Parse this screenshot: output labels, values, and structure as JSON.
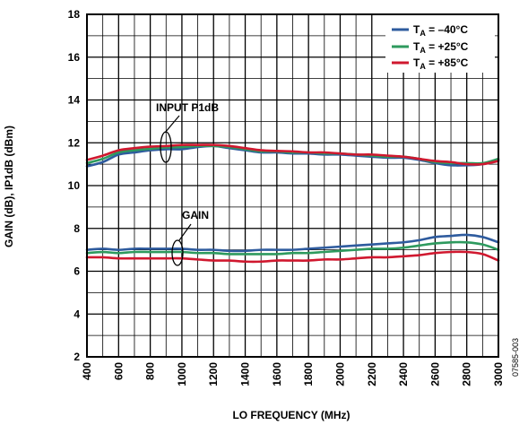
{
  "chart_data": {
    "type": "line",
    "xlabel": "LO FREQUENCY (MHz)",
    "ylabel": "GAIN (dB), IP1dB (dBm)",
    "xlim": [
      400,
      3000
    ],
    "ylim": [
      2,
      18
    ],
    "x_ticks": [
      400,
      600,
      800,
      1000,
      1200,
      1400,
      1600,
      1800,
      2000,
      2200,
      2400,
      2600,
      2800,
      3000
    ],
    "y_ticks": [
      2,
      4,
      6,
      8,
      10,
      12,
      14,
      16,
      18
    ],
    "grid": true,
    "legend_position": "top-right",
    "legend": [
      {
        "main": "T",
        "sub": "A",
        "suffix": " = –40°C",
        "color": "#2e5b9e"
      },
      {
        "main": "T",
        "sub": "A",
        "suffix": " = +25°C",
        "color": "#2e9a5e"
      },
      {
        "main": "T",
        "sub": "A",
        "suffix": " = +85°C",
        "color": "#d0182f"
      }
    ],
    "annotations": [
      {
        "label": "INPUT P1dB",
        "x": 1000,
        "y": 11.8
      },
      {
        "label": "GAIN",
        "x": 1070,
        "y": 6.9
      }
    ],
    "x": [
      400,
      500,
      600,
      700,
      800,
      900,
      1000,
      1100,
      1200,
      1300,
      1400,
      1500,
      1600,
      1700,
      1800,
      1900,
      2000,
      2100,
      2200,
      2300,
      2400,
      2500,
      2600,
      2700,
      2800,
      2900,
      3000
    ],
    "series": [
      {
        "name": "INPUT P1dB, TA = –40°C",
        "color": "#2e5b9e",
        "values": [
          10.9,
          11.1,
          11.45,
          11.55,
          11.65,
          11.7,
          11.7,
          11.8,
          11.85,
          11.75,
          11.65,
          11.55,
          11.55,
          11.5,
          11.5,
          11.45,
          11.45,
          11.4,
          11.35,
          11.3,
          11.3,
          11.2,
          11.05,
          10.95,
          10.95,
          11.0,
          11.2
        ]
      },
      {
        "name": "INPUT P1dB, TA = +25°C",
        "color": "#2e9a5e",
        "values": [
          11.05,
          11.25,
          11.55,
          11.65,
          11.72,
          11.78,
          11.8,
          11.85,
          11.85,
          11.8,
          11.7,
          11.6,
          11.6,
          11.55,
          11.55,
          11.5,
          11.5,
          11.45,
          11.4,
          11.35,
          11.35,
          11.25,
          11.1,
          11.05,
          11.05,
          11.05,
          11.25
        ]
      },
      {
        "name": "INPUT P1dB, TA = +85°C",
        "color": "#d0182f",
        "values": [
          11.2,
          11.4,
          11.65,
          11.75,
          11.82,
          11.85,
          11.9,
          11.9,
          11.9,
          11.85,
          11.75,
          11.65,
          11.62,
          11.6,
          11.55,
          11.55,
          11.5,
          11.45,
          11.45,
          11.4,
          11.35,
          11.25,
          11.15,
          11.1,
          11.0,
          11.0,
          11.15
        ]
      },
      {
        "name": "GAIN, TA = –40°C",
        "color": "#2e5b9e",
        "values": [
          7.0,
          7.05,
          7.0,
          7.05,
          7.05,
          7.05,
          7.05,
          7.0,
          7.0,
          6.95,
          6.95,
          7.0,
          7.0,
          7.0,
          7.05,
          7.1,
          7.15,
          7.2,
          7.25,
          7.3,
          7.35,
          7.45,
          7.6,
          7.65,
          7.7,
          7.6,
          7.35
        ]
      },
      {
        "name": "GAIN, TA = +25°C",
        "color": "#2e9a5e",
        "values": [
          6.85,
          6.9,
          6.85,
          6.9,
          6.9,
          6.9,
          6.9,
          6.85,
          6.85,
          6.8,
          6.8,
          6.8,
          6.8,
          6.85,
          6.85,
          6.9,
          6.95,
          7.0,
          7.05,
          7.05,
          7.1,
          7.2,
          7.3,
          7.35,
          7.35,
          7.25,
          7.0
        ]
      },
      {
        "name": "GAIN, TA = +85°C",
        "color": "#d0182f",
        "values": [
          6.65,
          6.65,
          6.6,
          6.6,
          6.6,
          6.6,
          6.6,
          6.55,
          6.5,
          6.5,
          6.45,
          6.45,
          6.5,
          6.5,
          6.5,
          6.55,
          6.55,
          6.6,
          6.65,
          6.65,
          6.7,
          6.75,
          6.85,
          6.9,
          6.9,
          6.8,
          6.5
        ]
      }
    ]
  },
  "figure_id": "07585-003"
}
